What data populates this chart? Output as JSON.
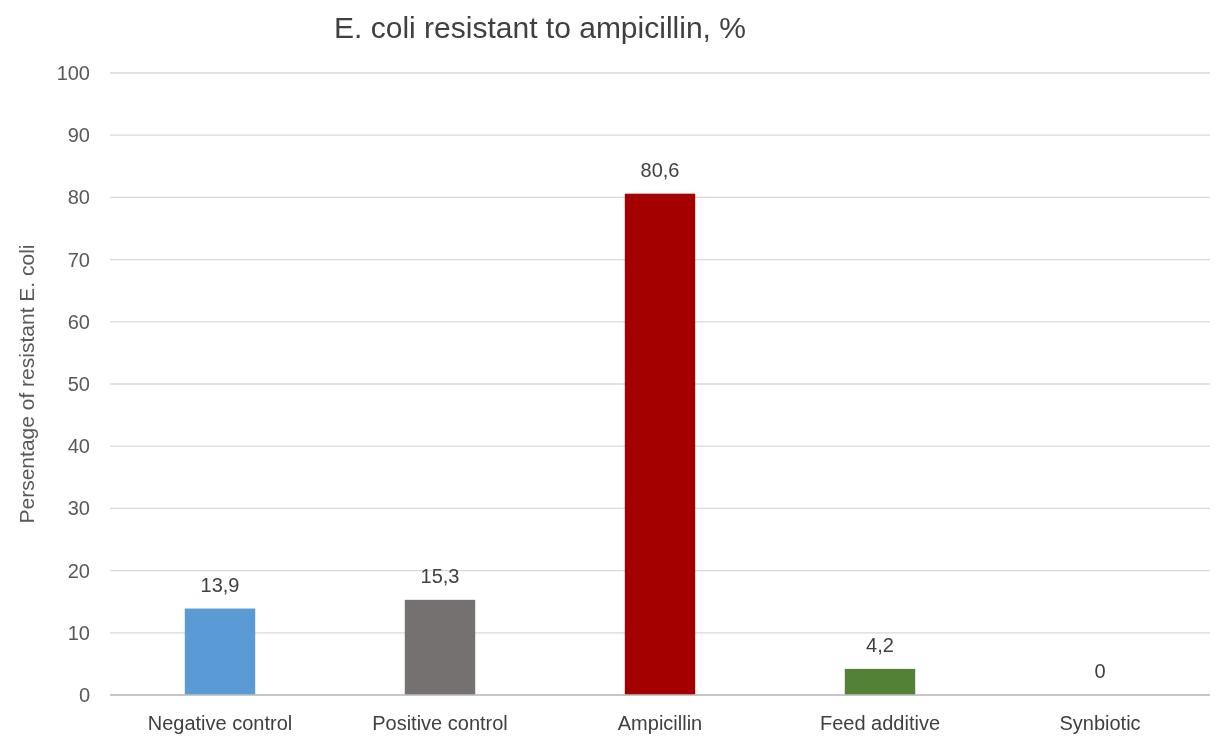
{
  "chart_data": {
    "type": "bar",
    "title": "E. coli resistant to ampicillin, %",
    "ylabel": "Persentage of resistant E. coli",
    "categories": [
      "Negative control",
      "Positive control",
      "Ampicillin",
      "Feed additive",
      "Synbiotic"
    ],
    "values": [
      13.9,
      15.3,
      80.6,
      4.2,
      0
    ],
    "colors": [
      "#5b9bd5",
      "#767171",
      "#a50000",
      "#538135",
      "#70ad47"
    ],
    "value_labels": [
      "13,9",
      "15,3",
      "80,6",
      "4,2",
      "0"
    ],
    "ylim": [
      0,
      100
    ],
    "yticks": [
      0,
      10,
      20,
      30,
      40,
      50,
      60,
      70,
      80,
      90,
      100
    ],
    "grid": "y"
  }
}
